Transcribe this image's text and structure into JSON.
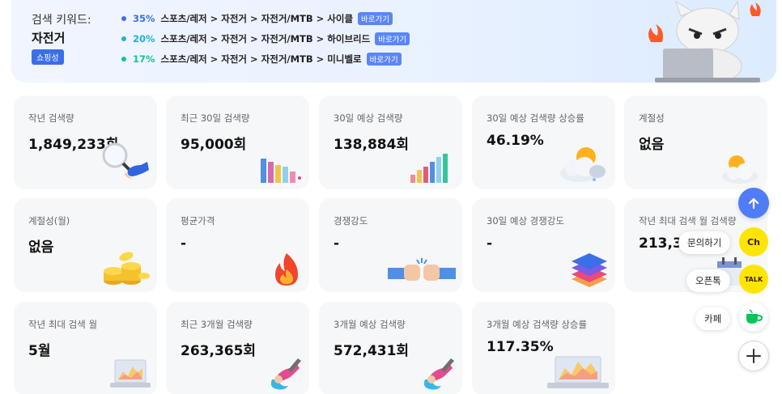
{
  "keyword": {
    "label": "검색 키워드:",
    "value": "자전거",
    "badge": "쇼핑성"
  },
  "categories": [
    {
      "percent": "35%",
      "path": "스포츠/레저 > 자전거 > 자전거/MTB > 사이클",
      "link": "바로가기",
      "color": "#3a6fe8"
    },
    {
      "percent": "20%",
      "path": "스포츠/레저 > 자전거 > 자전거/MTB > 하이브리드",
      "link": "바로가기",
      "color": "#19b3d6"
    },
    {
      "percent": "17%",
      "path": "스포츠/레저 > 자전거 > 자전거/MTB > 미니벨로",
      "link": "바로가기",
      "color": "#18c28f"
    }
  ],
  "cards": [
    {
      "title": "작년 검색량",
      "value": "1,849,233회",
      "icon": "magnifier-hand-icon"
    },
    {
      "title": "최근 30일 검색량",
      "value": "95,000회",
      "icon": "bar-chart-icon"
    },
    {
      "title": "30일 예상 검색량",
      "value": "138,884회",
      "icon": "bar-chart-rising-icon"
    },
    {
      "title": "30일 예상 검색량 상승률",
      "value": "46.19%",
      "icon": "sun-cloud-icon"
    },
    {
      "title": "계절성",
      "value": "없음",
      "icon": "sun-cloud-icon"
    },
    {
      "title": "계절성(월)",
      "value": "없음",
      "icon": "coins-icon"
    },
    {
      "title": "평균가격",
      "value": "-",
      "icon": "fire-icon"
    },
    {
      "title": "경쟁강도",
      "value": "-",
      "icon": "fist-bump-icon"
    },
    {
      "title": "30일 예상 경쟁강도",
      "value": "-",
      "icon": "layers-icon"
    },
    {
      "title": "작년 최대 검색 월 검색량",
      "value": "213,3",
      "icon": "calendar-icon"
    },
    {
      "title": "작년 최대 검색 월",
      "value": "5월",
      "icon": "laptop-chart-icon"
    },
    {
      "title": "최근 3개월 검색량",
      "value": "263,365회",
      "icon": "hand-pen-icon"
    },
    {
      "title": "3개월 예상 검색량",
      "value": "572,431회",
      "icon": "hand-pen-icon"
    },
    {
      "title": "3개월 예상 검색량 상승률",
      "value": "117.35%",
      "icon": "laptop-chart-icon"
    }
  ],
  "floating": {
    "scroll_top": "arrow-up-icon",
    "inquiry_label": "문의하기",
    "inquiry_icon": "Ch",
    "openchat_label": "오픈톡",
    "openchat_icon": "TALK",
    "cafe_label": "카페",
    "cafe_icon": "cafe-cup-icon",
    "expand": "plus-icon"
  }
}
